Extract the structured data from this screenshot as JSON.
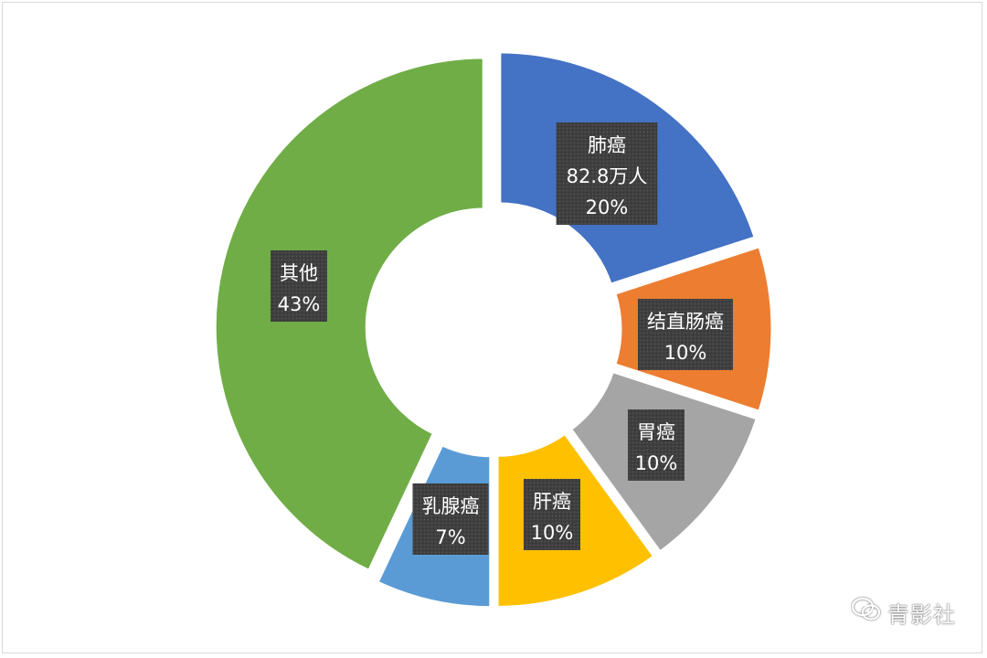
{
  "chart_data": {
    "type": "pie",
    "variant": "donut",
    "title": "",
    "legend": "none",
    "slices": [
      {
        "name": "肺癌",
        "value": 20,
        "labels": [
          "肺癌",
          "82.8万人",
          "20%"
        ],
        "color": "#4472C4"
      },
      {
        "name": "结直肠癌",
        "value": 10,
        "labels": [
          "结直肠癌",
          "10%"
        ],
        "color": "#ED7D31"
      },
      {
        "name": "胃癌",
        "value": 10,
        "labels": [
          "胃癌",
          "10%"
        ],
        "color": "#A5A5A5"
      },
      {
        "name": "肝癌",
        "value": 10,
        "labels": [
          "肝癌",
          "10%"
        ],
        "color": "#FFC000"
      },
      {
        "name": "乳腺癌",
        "value": 7,
        "labels": [
          "乳腺癌",
          "7%"
        ],
        "color": "#5B9BD5"
      },
      {
        "name": "其他",
        "value": 43,
        "labels": [
          "其他",
          "43%"
        ],
        "color": "#70AD47"
      }
    ]
  },
  "watermark": {
    "icon": "wechat-icon",
    "text": "青影社"
  },
  "colors": {
    "label_bg": "#404040",
    "border": "#d9d9d9"
  }
}
